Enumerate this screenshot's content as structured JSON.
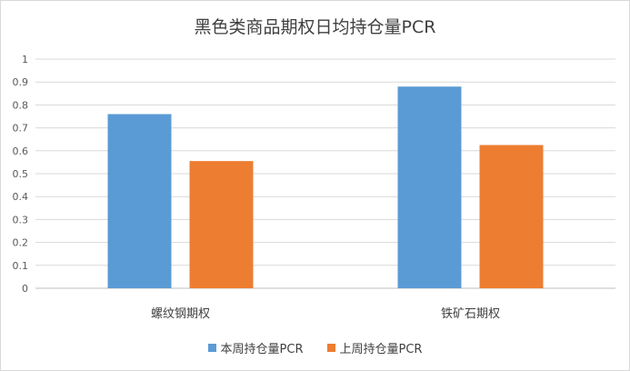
{
  "chart_data": {
    "type": "bar",
    "title": "黑色类商品期权日均持仓量PCR",
    "categories": [
      "螺纹钢期权",
      "铁矿石期权"
    ],
    "series": [
      {
        "name": "本周持仓量PCR",
        "color": "#5b9bd5",
        "values": [
          0.76,
          0.88
        ]
      },
      {
        "name": "上周持仓量PCR",
        "color": "#ed7d31",
        "values": [
          0.555,
          0.625
        ]
      }
    ],
    "ylim": [
      0,
      1
    ],
    "yticks": [
      "0",
      "0.1",
      "0.2",
      "0.3",
      "0.4",
      "0.5",
      "0.6",
      "0.7",
      "0.8",
      "0.9",
      "1"
    ],
    "grid": true,
    "legend_position": "bottom"
  }
}
